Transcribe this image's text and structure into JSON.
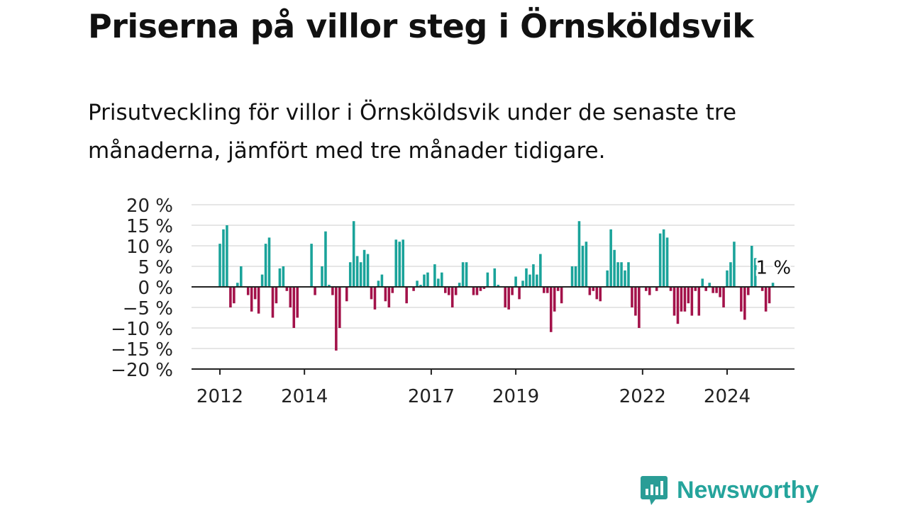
{
  "header": {
    "title": "Priserna på villor steg i Örnsköldsvik",
    "subtitle": "Prisutveckling för villor i Örnsköldsvik under de senaste tre månaderna, jämfört med tre månader tidigare."
  },
  "brand": {
    "name": "Newsworthy",
    "icon": "newsworthy-logo-icon",
    "color": "#2a9d96"
  },
  "colors": {
    "positive": "#1aa39a",
    "negative": "#a3124a",
    "grid": "#dddddd",
    "axis": "#222222"
  },
  "chart_data": {
    "type": "bar",
    "ylim": [
      -20,
      20
    ],
    "y_ticks": [
      20,
      15,
      10,
      5,
      0,
      -5,
      -10,
      -15,
      -20
    ],
    "y_tick_labels": [
      "20 %",
      "15 %",
      "10 %",
      "5 %",
      "0 %",
      "−5 %",
      "−10 %",
      "−15 %",
      "−20 %"
    ],
    "x_tick_labels": [
      "2012",
      "2014",
      "2017",
      "2019",
      "2022",
      "2024"
    ],
    "x_tick_dates": [
      "2012-01",
      "2014-01",
      "2017-01",
      "2019-01",
      "2022-01",
      "2024-01"
    ],
    "start_month": "2012-01",
    "end_annotation": "1 %",
    "values": [
      10.5,
      14,
      15,
      -5,
      -4,
      1,
      5,
      0,
      -2,
      -6,
      -3,
      -6.5,
      3,
      10.5,
      12,
      -7.5,
      -4,
      4.5,
      5,
      -1,
      -5,
      -10,
      -7.5,
      0,
      0,
      0,
      10.5,
      -2,
      0,
      5,
      13.5,
      0.5,
      -2,
      -15.5,
      -10,
      0,
      -3.5,
      6,
      16,
      7.5,
      6,
      9,
      8,
      -3,
      -5.5,
      1.5,
      3,
      -3.5,
      -5,
      -1.5,
      11.5,
      11,
      11.5,
      -4,
      0,
      -1,
      1.5,
      0.5,
      3,
      3.5,
      0,
      5.5,
      2,
      3.5,
      -1.5,
      -2,
      -5,
      -2,
      1,
      6,
      6,
      0,
      -2,
      -2,
      -1,
      -0.5,
      3.5,
      0,
      4.5,
      0.5,
      0,
      -5,
      -5.5,
      -2,
      2.5,
      -3,
      1.5,
      4.5,
      3,
      5.5,
      3,
      8,
      -1.5,
      -1.5,
      -11,
      -6,
      -1,
      -4,
      0,
      0,
      5,
      5,
      16,
      10,
      11,
      -2,
      -1,
      -3,
      -3.5,
      0,
      4,
      14,
      9,
      6,
      6,
      4,
      6,
      -5,
      -7,
      -10,
      0,
      -1,
      -2,
      0,
      -1,
      13,
      14,
      12,
      -1,
      -7,
      -9,
      -6,
      -6,
      -4,
      -7,
      -1,
      -7,
      2,
      -1,
      1,
      -1.5,
      -1.5,
      -2.5,
      -5,
      4,
      6,
      11,
      0,
      -6,
      -8,
      -2,
      10,
      7,
      0,
      -1,
      -6,
      -4,
      1
    ]
  }
}
